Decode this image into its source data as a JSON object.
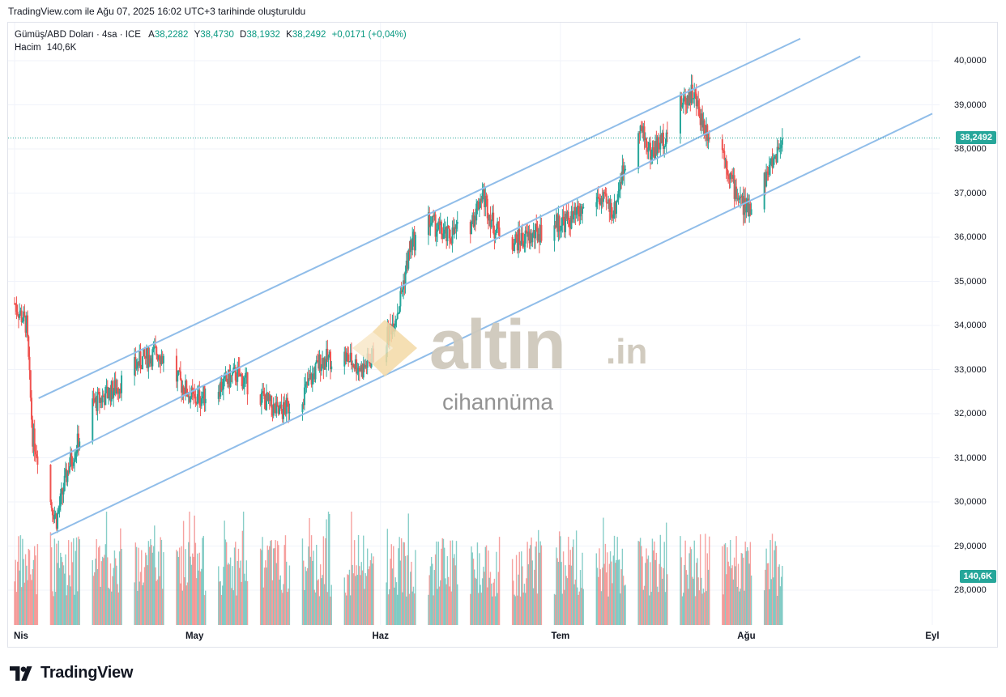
{
  "header": {
    "credit": "TradingView.com ile Ağu 07, 2025 16:02 UTC+3 tarihinde oluşturuldu"
  },
  "legend": {
    "symbol": "Gümüş/ABD Doları · 4sa · ICE",
    "open_label": "A",
    "open": "38,2282",
    "high_label": "Y",
    "high": "38,4730",
    "low_label": "D",
    "low": "38,1932",
    "close_label": "K",
    "close": "38,2492",
    "change": "+0,0171 (+0,04%)",
    "volume_label": "Hacim",
    "volume": "140,6K"
  },
  "price_tags": {
    "last_price": "38,2492",
    "last_volume": "140,6K"
  },
  "watermark": {
    "brand": "altin",
    "suffix": ".in",
    "subtitle": "cihannüma"
  },
  "footer": {
    "brand": "TradingView"
  },
  "colors": {
    "up": "#26a69a",
    "down": "#ef5350",
    "channel": "#90bde9",
    "last_line": "#26a69a"
  },
  "chart_data": {
    "type": "candlestick",
    "title": "Gümüş/ABD Doları · 4sa · ICE",
    "timeframe": "4sa",
    "x_tick_labels": [
      "Nis",
      "May",
      "Haz",
      "Tem",
      "Ağu",
      "Eyl"
    ],
    "y_tick_labels": [
      "40,0000",
      "39,0000",
      "38,0000",
      "37,0000",
      "36,0000",
      "35,0000",
      "34,0000",
      "33,0000",
      "32,0000",
      "31,0000",
      "30,0000",
      "29,0000",
      "28,0000"
    ],
    "ylim": [
      27.2,
      40.9
    ],
    "last_price": 38.2492,
    "approx_close_path": [
      {
        "date": "2025-04-01",
        "close": 34.5
      },
      {
        "date": "2025-04-03",
        "close": 34.0
      },
      {
        "date": "2025-04-04",
        "close": 31.5
      },
      {
        "date": "2025-04-07",
        "close": 30.0
      },
      {
        "date": "2025-04-08",
        "close": 29.6
      },
      {
        "date": "2025-04-10",
        "close": 30.8
      },
      {
        "date": "2025-04-14",
        "close": 32.2
      },
      {
        "date": "2025-04-18",
        "close": 32.6
      },
      {
        "date": "2025-04-22",
        "close": 33.2
      },
      {
        "date": "2025-04-25",
        "close": 33.4
      },
      {
        "date": "2025-04-28",
        "close": 32.8
      },
      {
        "date": "2025-05-01",
        "close": 32.3
      },
      {
        "date": "2025-05-05",
        "close": 32.6
      },
      {
        "date": "2025-05-08",
        "close": 32.9
      },
      {
        "date": "2025-05-12",
        "close": 32.4
      },
      {
        "date": "2025-05-15",
        "close": 32.0
      },
      {
        "date": "2025-05-19",
        "close": 32.4
      },
      {
        "date": "2025-05-22",
        "close": 33.2
      },
      {
        "date": "2025-05-26",
        "close": 33.3
      },
      {
        "date": "2025-05-29",
        "close": 33.0
      },
      {
        "date": "2025-06-02",
        "close": 33.7
      },
      {
        "date": "2025-06-04",
        "close": 34.4
      },
      {
        "date": "2025-06-06",
        "close": 35.8
      },
      {
        "date": "2025-06-09",
        "close": 36.4
      },
      {
        "date": "2025-06-12",
        "close": 36.0
      },
      {
        "date": "2025-06-16",
        "close": 36.3
      },
      {
        "date": "2025-06-18",
        "close": 37.0
      },
      {
        "date": "2025-06-20",
        "close": 36.2
      },
      {
        "date": "2025-06-23",
        "close": 35.9
      },
      {
        "date": "2025-06-26",
        "close": 36.0
      },
      {
        "date": "2025-06-30",
        "close": 36.3
      },
      {
        "date": "2025-07-03",
        "close": 36.4
      },
      {
        "date": "2025-07-07",
        "close": 36.9
      },
      {
        "date": "2025-07-10",
        "close": 36.6
      },
      {
        "date": "2025-07-11",
        "close": 37.3
      },
      {
        "date": "2025-07-14",
        "close": 38.6
      },
      {
        "date": "2025-07-16",
        "close": 37.9
      },
      {
        "date": "2025-07-18",
        "close": 38.2
      },
      {
        "date": "2025-07-21",
        "close": 39.0
      },
      {
        "date": "2025-07-23",
        "close": 39.3
      },
      {
        "date": "2025-07-25",
        "close": 38.5
      },
      {
        "date": "2025-07-28",
        "close": 38.0
      },
      {
        "date": "2025-07-30",
        "close": 37.1
      },
      {
        "date": "2025-08-01",
        "close": 36.6
      },
      {
        "date": "2025-08-04",
        "close": 37.3
      },
      {
        "date": "2025-08-06",
        "close": 37.9
      },
      {
        "date": "2025-08-07",
        "close": 38.2492
      }
    ],
    "channel_lines": [
      {
        "name": "upper",
        "start": {
          "date": "2025-04-05",
          "price": 32.35
        },
        "end": {
          "date": "2025-08-10",
          "price": 40.5
        }
      },
      {
        "name": "middle",
        "start": {
          "date": "2025-04-07",
          "price": 30.9
        },
        "end": {
          "date": "2025-08-20",
          "price": 40.1
        }
      },
      {
        "name": "lower",
        "start": {
          "date": "2025-04-07",
          "price": 29.25
        },
        "end": {
          "date": "2025-09-01",
          "price": 38.8
        }
      }
    ],
    "volume_last": "140,6K"
  }
}
